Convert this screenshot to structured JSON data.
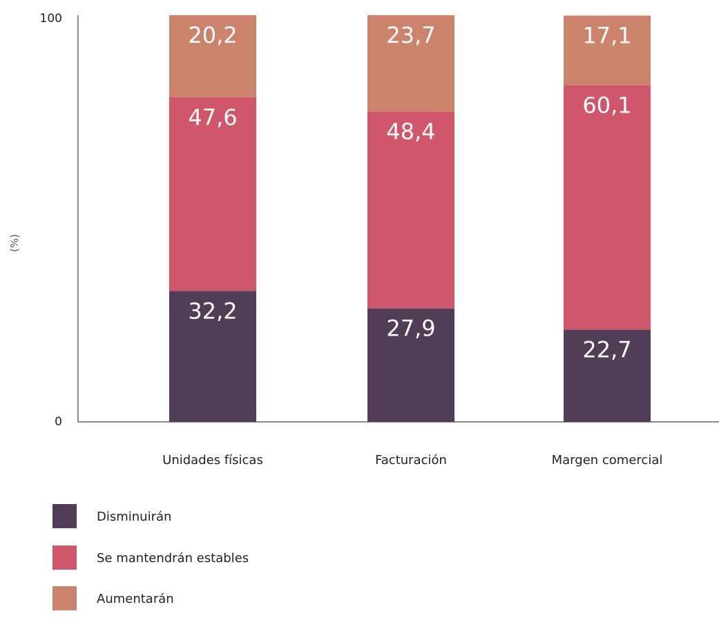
{
  "chart_data": {
    "type": "bar",
    "stacked": true,
    "categories": [
      "Unidades físicas",
      "Facturación",
      "Margen comercial"
    ],
    "series": [
      {
        "name": "Disminuirán",
        "values": [
          32.2,
          27.9,
          22.7
        ],
        "labels": [
          "32,2",
          "27,9",
          "22,7"
        ],
        "color": "#523d56"
      },
      {
        "name": "Se mantendrán estables",
        "values": [
          47.6,
          48.4,
          60.1
        ],
        "labels": [
          "47,6",
          "48,4",
          "60,1"
        ],
        "color": "#d0566b"
      },
      {
        "name": "Aumentarán",
        "values": [
          20.2,
          23.7,
          17.1
        ],
        "labels": [
          "20,2",
          "23,7",
          "17,1"
        ],
        "color": "#cb846b"
      }
    ],
    "title": "",
    "xlabel": "",
    "ylabel": "(%)",
    "ylim": [
      0,
      100
    ],
    "yticks": [
      "0",
      "100"
    ],
    "grid": false,
    "legend_position": "bottom-left",
    "axis_color": "#8c8c8c"
  }
}
